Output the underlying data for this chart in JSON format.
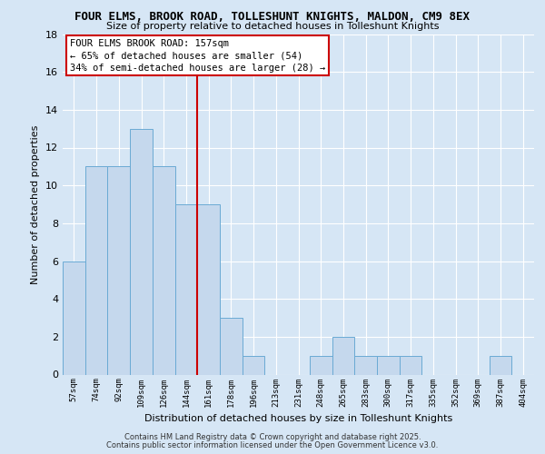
{
  "title": "FOUR ELMS, BROOK ROAD, TOLLESHUNT KNIGHTS, MALDON, CM9 8EX",
  "subtitle": "Size of property relative to detached houses in Tolleshunt Knights",
  "xlabel": "Distribution of detached houses by size in Tolleshunt Knights",
  "ylabel": "Number of detached properties",
  "bar_labels": [
    "57sqm",
    "74sqm",
    "92sqm",
    "109sqm",
    "126sqm",
    "144sqm",
    "161sqm",
    "178sqm",
    "196sqm",
    "213sqm",
    "231sqm",
    "248sqm",
    "265sqm",
    "283sqm",
    "300sqm",
    "317sqm",
    "335sqm",
    "352sqm",
    "369sqm",
    "387sqm",
    "404sqm"
  ],
  "bar_values": [
    6,
    11,
    11,
    13,
    11,
    9,
    9,
    3,
    1,
    0,
    0,
    1,
    2,
    1,
    1,
    1,
    0,
    0,
    0,
    1,
    0
  ],
  "bar_color": "#c5d8ed",
  "bar_edge_color": "#6aaad4",
  "red_line_x": 6,
  "red_line_color": "#cc0000",
  "annotation_line1": "FOUR ELMS BROOK ROAD: 157sqm",
  "annotation_line2": "← 65% of detached houses are smaller (54)",
  "annotation_line3": "34% of semi-detached houses are larger (28) →",
  "annotation_box_color": "#ffffff",
  "annotation_box_edge_color": "#cc0000",
  "ylim": [
    0,
    18
  ],
  "yticks": [
    0,
    2,
    4,
    6,
    8,
    10,
    12,
    14,
    16,
    18
  ],
  "footer_line1": "Contains HM Land Registry data © Crown copyright and database right 2025.",
  "footer_line2": "Contains public sector information licensed under the Open Government Licence v3.0.",
  "bg_color": "#d6e6f5",
  "fig_bg_color": "#d6e6f5"
}
